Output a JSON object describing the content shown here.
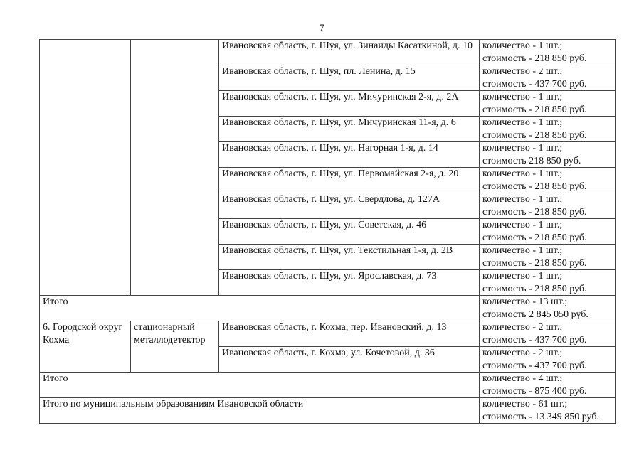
{
  "page_number": "7",
  "shuya_rows": [
    {
      "address": "Ивановская область, г. Шуя, ул. Зинаиды Касаткиной, д. 10",
      "qty": "количество - 1 шт.;",
      "cost": "стоимость - 218 850 руб."
    },
    {
      "address": "Ивановская область, г. Шуя, пл. Ленина, д. 15",
      "qty": "количество - 2 шт.;",
      "cost": "стоимость - 437 700 руб."
    },
    {
      "address": "Ивановская область, г. Шуя, ул. Мичуринская 2-я, д. 2А",
      "qty": "количество - 1 шт.;",
      "cost": "стоимость - 218 850 руб."
    },
    {
      "address": "Ивановская область, г. Шуя, ул. Мичуринская 11-я, д. 6",
      "qty": "количество - 1 шт.;",
      "cost": "стоимость - 218 850 руб."
    },
    {
      "address": "Ивановская область, г. Шуя, ул. Нагорная 1-я, д. 14",
      "qty": "количество - 1 шт.;",
      "cost": "стоимость 218 850 руб."
    },
    {
      "address": "Ивановская область, г. Шуя, ул. Первомайская 2-я, д. 20",
      "qty": "количество - 1 шт.;",
      "cost": "стоимость - 218 850 руб."
    },
    {
      "address": "Ивановская область, г. Шуя, ул. Свердлова, д. 127А",
      "qty": "количество - 1 шт.;",
      "cost": "стоимость - 218 850 руб."
    },
    {
      "address": "Ивановская область, г. Шуя, ул. Советская, д. 46",
      "qty": "количество - 1 шт.;",
      "cost": "стоимость - 218 850 руб."
    },
    {
      "address": "Ивановская область, г. Шуя, ул. Текстильная 1-я, д. 2В",
      "qty": "количество - 1 шт.;",
      "cost": "стоимость - 218 850 руб."
    },
    {
      "address": "Ивановская область, г. Шуя, ул. Ярославская, д. 73",
      "qty": "количество - 1 шт.;",
      "cost": "стоимость - 218 850 руб."
    }
  ],
  "shuya_total": {
    "label": "Итого",
    "qty": "количество - 13 шт.;",
    "cost": "стоимость 2 845 050 руб."
  },
  "kokhma": {
    "municipality": "6. Городской округ Кохма",
    "device": "стационарный металлодетектор",
    "rows": [
      {
        "address": "Ивановская область, г. Кохма, пер. Ивановский, д. 13",
        "qty": "количество - 2 шт.;",
        "cost": "стоимость - 437 700 руб."
      },
      {
        "address": "Ивановская область, г. Кохма, ул. Кочетовой, д. 36",
        "qty": "количество - 2 шт.;",
        "cost": "стоимость - 437 700 руб."
      }
    ],
    "total": {
      "label": "Итого",
      "qty": "количество - 4 шт.;",
      "cost": "стоимость - 875 400 руб."
    }
  },
  "grand_total": {
    "label": "Итого по муниципальным образованиям Ивановской области",
    "qty": "количество - 61 шт.;",
    "cost": "стоимость - 13 349 850 руб."
  }
}
